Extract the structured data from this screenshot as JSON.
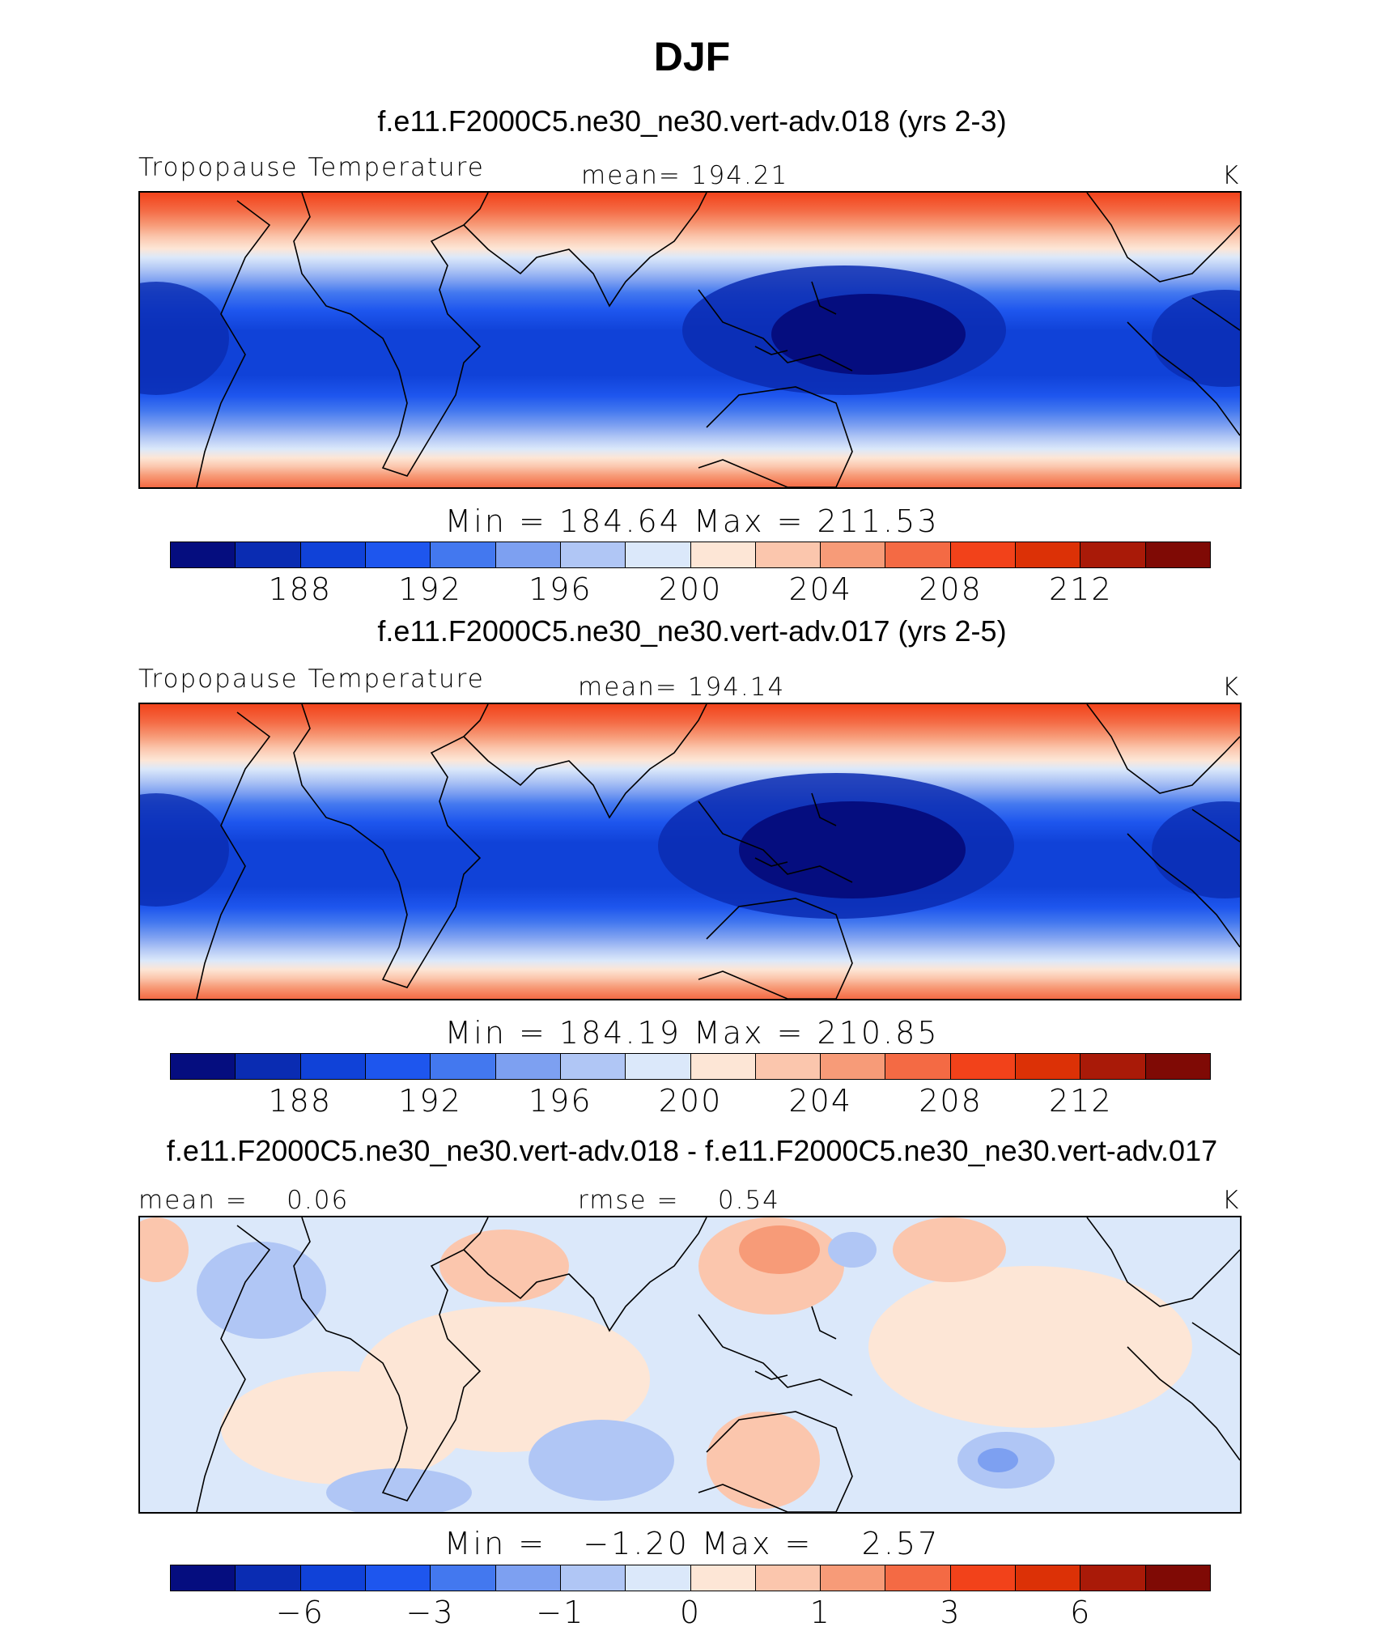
{
  "title": "DJF",
  "panels": [
    {
      "id": "p1",
      "title": "f.e11.F2000C5.ne30_ne30.vert-adv.018 (yrs 2-3)",
      "left_label": "Tropopause Temperature",
      "center_label": "mean= 194.21",
      "units": "K",
      "min_max": "Min = 184.64 Max = 211.53",
      "colorbar_ticks": [
        "188",
        "192",
        "196",
        "200",
        "204",
        "208",
        "212"
      ]
    },
    {
      "id": "p2",
      "title": "f.e11.F2000C5.ne30_ne30.vert-adv.017 (yrs 2-5)",
      "left_label": "Tropopause Temperature",
      "center_label": "mean= 194.14",
      "units": "K",
      "min_max": "Min = 184.19 Max = 210.85",
      "colorbar_ticks": [
        "188",
        "192",
        "196",
        "200",
        "204",
        "208",
        "212"
      ]
    },
    {
      "id": "p3",
      "title": "f.e11.F2000C5.ne30_ne30.vert-adv.018 - f.e11.F2000C5.ne30_ne30.vert-adv.017",
      "left_label": "mean =    0.06",
      "center_label": "rmse =    0.54",
      "units": "K",
      "min_max": "Min =   −1.20 Max =    2.57",
      "colorbar_ticks": [
        "−6",
        "−3",
        "−1",
        "0",
        "1",
        "3",
        "6"
      ]
    }
  ],
  "colorbar_colors": [
    "#050d7f",
    "#0a2cb2",
    "#1042d8",
    "#1e56ee",
    "#4378ef",
    "#7da0f1",
    "#b0c6f5",
    "#dbe8fa",
    "#fde6d6",
    "#fbc6ad",
    "#f79b78",
    "#f46a44",
    "#f2421a",
    "#dc3106",
    "#a91a08",
    "#7f0a05"
  ]
}
